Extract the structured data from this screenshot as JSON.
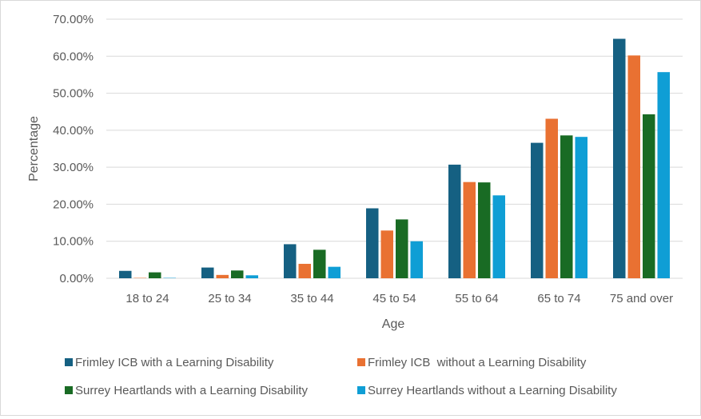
{
  "chart_data": {
    "type": "bar",
    "title": "",
    "xlabel": "Age",
    "ylabel": "Percentage",
    "ylim": [
      0,
      0.7
    ],
    "yticks": [
      "0.00%",
      "10.00%",
      "20.00%",
      "30.00%",
      "40.00%",
      "50.00%",
      "60.00%",
      "70.00%"
    ],
    "categories": [
      "18 to 24",
      "25 to 34",
      "35 to 44",
      "45 to 54",
      "55 to 64",
      "65 to 74",
      "75 and over"
    ],
    "grid": true,
    "legend_position": "bottom",
    "series": [
      {
        "name": "Frimley ICB with a Learning Disability",
        "color": "#156082",
        "values": [
          0.02,
          0.029,
          0.092,
          0.189,
          0.307,
          0.366,
          0.647
        ]
      },
      {
        "name": "Frimley ICB  without a Learning Disability",
        "color": "#e97132",
        "values": [
          0.001,
          0.009,
          0.039,
          0.129,
          0.26,
          0.431,
          0.602
        ]
      },
      {
        "name": "Surrey Heartlands with a Learning Disability",
        "color": "#196b24",
        "values": [
          0.016,
          0.021,
          0.077,
          0.159,
          0.259,
          0.386,
          0.443
        ]
      },
      {
        "name": "Surrey Heartlands without a Learning Disability",
        "color": "#0f9ed5",
        "values": [
          0.001,
          0.008,
          0.031,
          0.1,
          0.224,
          0.382,
          0.557
        ]
      }
    ]
  }
}
